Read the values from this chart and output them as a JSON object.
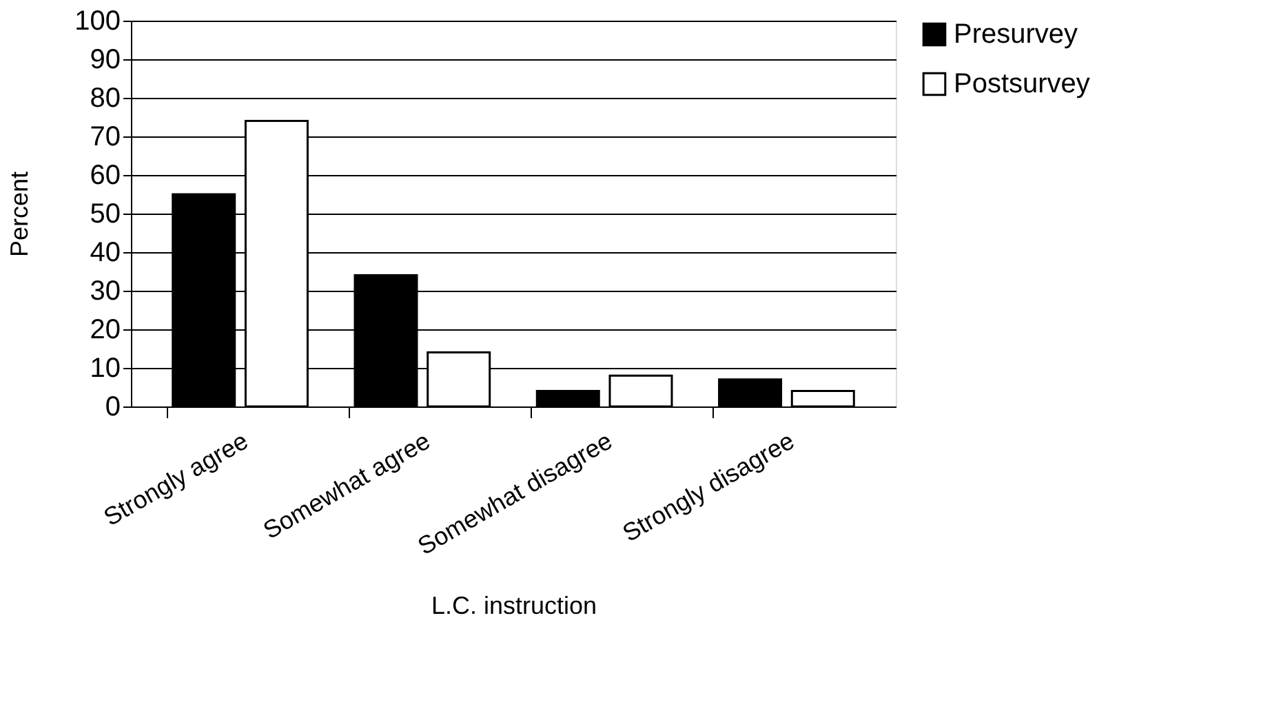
{
  "chart_data": {
    "type": "bar",
    "xlabel": "L.C. instruction",
    "ylabel": "Percent",
    "categories": [
      "Strongly agree",
      "Somewhat agree",
      "Somewhat disagree",
      "Strongly disagree"
    ],
    "series": [
      {
        "name": "Presurvey",
        "color": "#000000",
        "values": [
          55,
          34,
          4,
          7
        ]
      },
      {
        "name": "Postsurvey",
        "color": "#ffffff",
        "values": [
          74,
          14,
          8,
          4
        ]
      }
    ],
    "ylim": [
      0,
      100
    ],
    "yticks": [
      0,
      10,
      20,
      30,
      40,
      50,
      60,
      70,
      80,
      90,
      100
    ],
    "grid": "y",
    "legend": "right"
  }
}
